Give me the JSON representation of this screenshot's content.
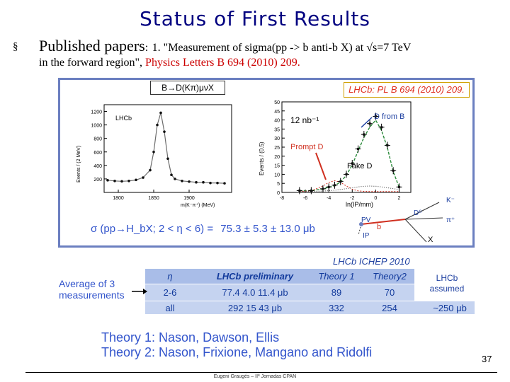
{
  "slide": {
    "title": "Status of First Results",
    "bullet": "§",
    "pub_prefix": "Published papers",
    "pub_colon": ":",
    "pub_item": "1. \"Measurement of sigma(pp -> b anti-b X) at √s=7 TeV",
    "pub_line2": "in the forward region\", ",
    "pub_journal": "Physics Letters B 694 (2010) 209.",
    "page_number": "37",
    "footer": "Eugeni Graugés – IIª Jornadas CPAN"
  },
  "figure": {
    "caption": "LHCb: PL B 694 (2010) 209.",
    "left_title": "B→D(Kπ)μνX",
    "left_label": "LHCb",
    "left_ylabel": "Events / (2 MeV)",
    "left_xlabel": "m(K⁻π⁺) (MeV)",
    "right_label": "12 nb⁻¹",
    "right_ylabel": "Events / (0.5)",
    "right_xlabel": "ln(IP/mm)",
    "legend_dfromb": "D from B",
    "legend_prompt": "Prompt D",
    "legend_fake": "Fake D",
    "decay_pv": "PV",
    "decay_ip": "IP",
    "decay_b": "b",
    "decay_d0": "D⁰",
    "decay_k": "K⁻",
    "decay_pi": "π⁺",
    "decay_x": "X",
    "sigma_formula": "σ (pp→H_bX; 2 < η < 6) =",
    "sigma_value": "75.3 ± 5.3 ± 13.0  μb"
  },
  "left_chart_data": {
    "type": "scatter",
    "title": "B→D(Kπ)μνX",
    "xlabel": "m(K⁻π⁺) (MeV)",
    "ylabel": "Events / (2 MeV)",
    "xlim": [
      1780,
      1960
    ],
    "ylim": [
      0,
      1300
    ],
    "xticks": [
      "1800",
      "1850",
      "1900"
    ],
    "yticks": [
      "200",
      "400",
      "600",
      "800",
      "1000",
      "1200"
    ],
    "x": [
      1785,
      1795,
      1805,
      1815,
      1825,
      1835,
      1845,
      1850,
      1855,
      1860,
      1865,
      1870,
      1875,
      1880,
      1890,
      1900,
      1910,
      1920,
      1930,
      1940,
      1950
    ],
    "y": [
      180,
      170,
      165,
      170,
      185,
      220,
      330,
      600,
      1000,
      1180,
      900,
      500,
      260,
      200,
      170,
      160,
      150,
      150,
      140,
      140,
      135
    ]
  },
  "right_chart_data": {
    "type": "scatter",
    "xlabel": "ln(IP/mm)",
    "ylabel": "Events / (0.5)",
    "xlim": [
      -8,
      3
    ],
    "ylim": [
      0,
      50
    ],
    "xticks": [
      "-8",
      "-6",
      "-4",
      "-2",
      "0",
      "2"
    ],
    "yticks": [
      "0",
      "5",
      "10",
      "15",
      "20",
      "25",
      "30",
      "35",
      "40",
      "45",
      "50"
    ],
    "x": [
      -6.5,
      -5.5,
      -4.5,
      -4,
      -3.5,
      -3,
      -2.5,
      -2,
      -1.5,
      -1,
      -0.5,
      0,
      0.5,
      1,
      1.5,
      2
    ],
    "y": [
      1,
      1,
      2,
      3,
      4,
      6,
      10,
      16,
      24,
      32,
      38,
      42,
      36,
      26,
      12,
      3
    ]
  },
  "table": {
    "header_label": "LHCb ICHEP 2010",
    "avg_label": "Average of 3\nmeasurements",
    "lhcb_assumed": "LHCb\nassumed",
    "col_eta": "η",
    "col_prelim": "LHCb preliminary",
    "col_t1": "Theory 1",
    "col_t2": "Theory2",
    "rows": [
      {
        "eta": "2-6",
        "prelim": "77.4    4.0   11.4 μb",
        "t1": "89",
        "t2": "70",
        "extra": ""
      },
      {
        "eta": "all",
        "prelim": "292    15    43 μb",
        "t1": "332",
        "t2": "254",
        "extra": "~250 μb"
      }
    ]
  },
  "theories": {
    "line1": "Theory 1: Nason, Dawson, Ellis",
    "line2": "Theory 2: Nason, Frixione, Mangano and Ridolfi"
  }
}
